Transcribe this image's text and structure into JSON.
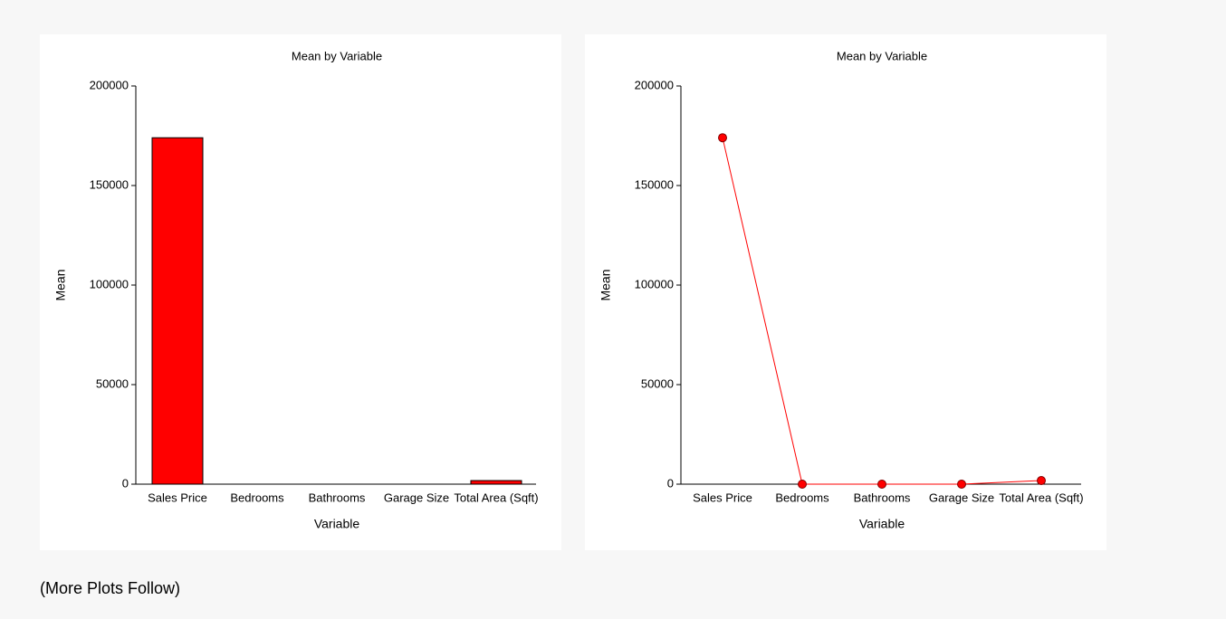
{
  "chart_data": [
    {
      "type": "bar",
      "title": "Mean by Variable",
      "xlabel": "Variable",
      "ylabel": "Mean",
      "categories": [
        "Sales Price",
        "Bedrooms",
        "Bathrooms",
        "Garage Size",
        "Total Area (Sqft)"
      ],
      "values": [
        174000,
        3,
        2,
        2,
        1800
      ],
      "color": "#ff0000",
      "ylim": [
        0,
        200000
      ],
      "yticks": [
        0,
        50000,
        100000,
        150000,
        200000
      ]
    },
    {
      "type": "line",
      "title": "Mean by Variable",
      "xlabel": "Variable",
      "ylabel": "Mean",
      "categories": [
        "Sales Price",
        "Bedrooms",
        "Bathrooms",
        "Garage Size",
        "Total Area (Sqft)"
      ],
      "values": [
        174000,
        3,
        2,
        2,
        1800
      ],
      "color": "#ff0000",
      "ylim": [
        0,
        200000
      ],
      "yticks": [
        0,
        50000,
        100000,
        150000,
        200000
      ]
    }
  ],
  "footer": "(More Plots Follow)"
}
